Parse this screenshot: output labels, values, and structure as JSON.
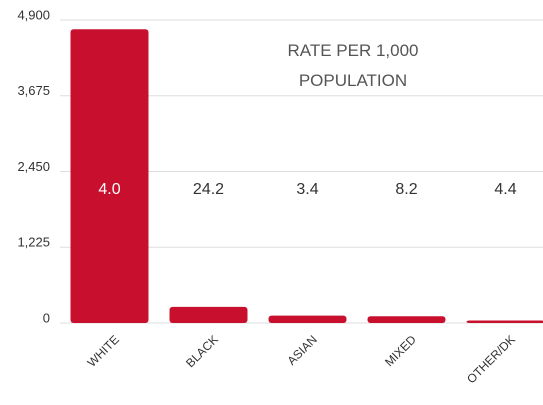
{
  "chart_data": {
    "type": "bar",
    "annotation": "RATE PER 1,000 POPULATION",
    "categories": [
      "WHITE",
      "BLACK",
      "ASIAN",
      "MIXED",
      "OTHER/DK"
    ],
    "values": [
      4750,
      260,
      120,
      110,
      40
    ],
    "rate_labels": [
      "4.0",
      "24.2",
      "3.4",
      "8.2",
      "4.4"
    ],
    "color": "#c8102e",
    "ylim": [
      0,
      4900
    ],
    "yticks": [
      0,
      {
        "value": 1225,
        "label": "1,225"
      },
      {
        "value": 2450,
        "label": "2,450"
      },
      {
        "value": 3675,
        "label": "3,675"
      },
      {
        "value": 4900,
        "label": "4,900"
      }
    ],
    "grid": true
  }
}
